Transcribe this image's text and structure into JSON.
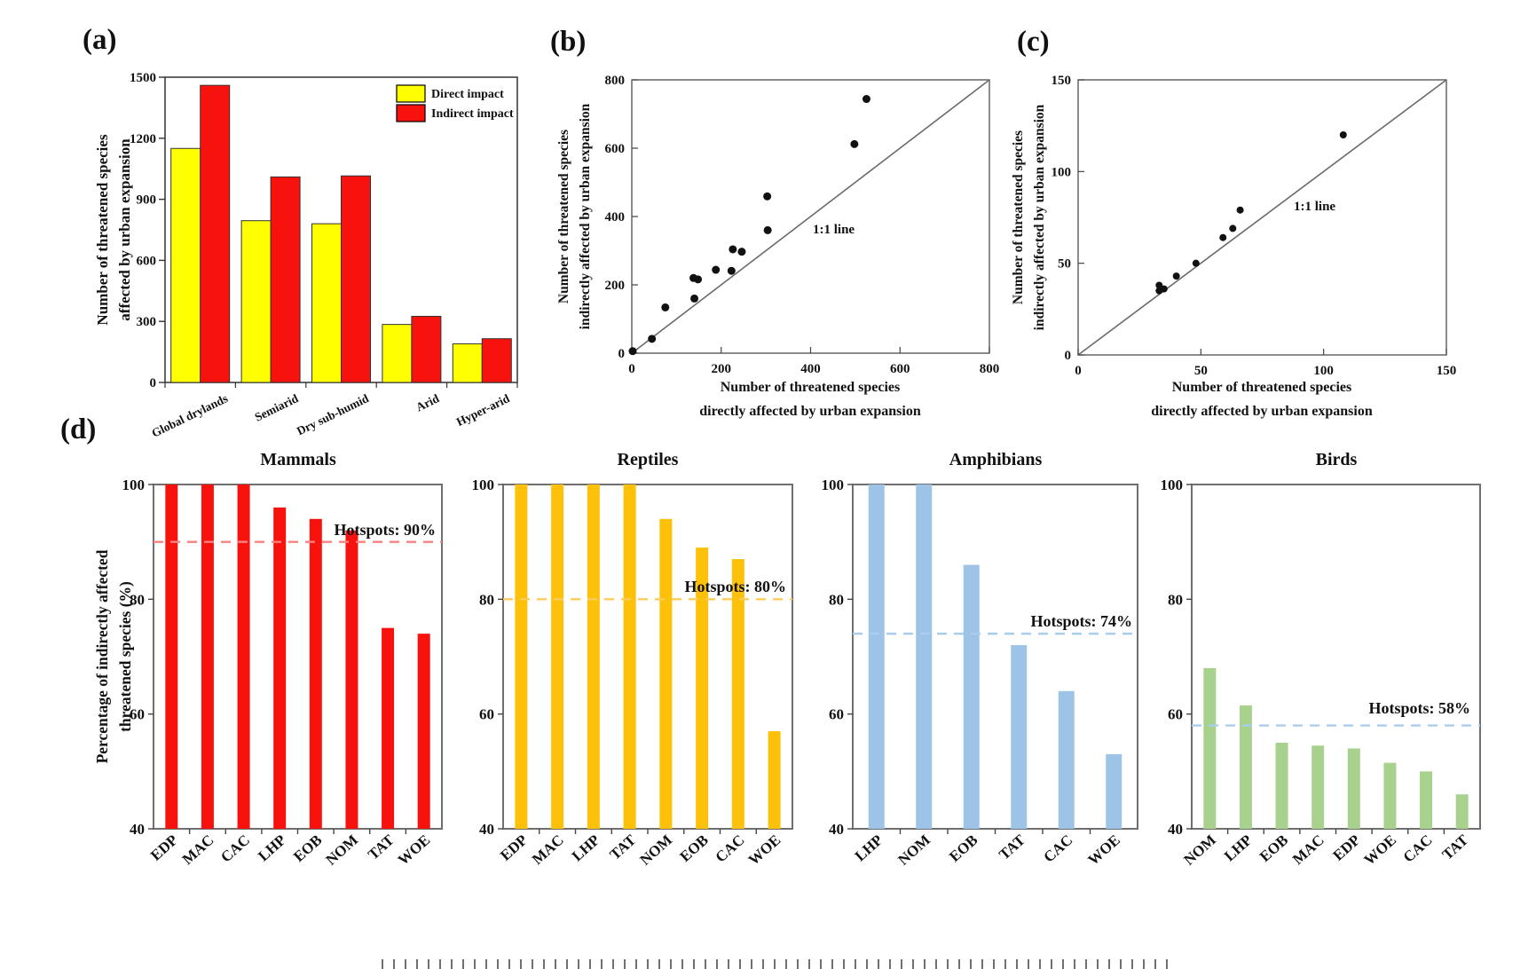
{
  "canvas": {
    "background": "#ffffff"
  },
  "chart_data": [
    {
      "id": "a",
      "panel_label": "(a)",
      "type": "bar",
      "categories": [
        "Global drylands",
        "Semiarid",
        "Dry sub-humid",
        "Arid",
        "Hyper-arid"
      ],
      "series": [
        {
          "name": "Direct impact",
          "color": "#ffff00",
          "values": [
            1150,
            795,
            780,
            285,
            190
          ]
        },
        {
          "name": "Indirect impact",
          "color": "#f8120e",
          "values": [
            1460,
            1010,
            1015,
            325,
            215
          ]
        }
      ],
      "ylabel_lines": [
        "Number of threatened species",
        "affected by urban expansion"
      ],
      "ylim": [
        0,
        1500
      ],
      "yticks": [
        0,
        300,
        600,
        900,
        1200,
        1500
      ],
      "legend_position": "top-right",
      "grid": false
    },
    {
      "id": "b",
      "panel_label": "(b)",
      "type": "scatter",
      "points": [
        [
          2,
          6
        ],
        [
          45,
          42
        ],
        [
          75,
          134
        ],
        [
          140,
          160
        ],
        [
          138,
          220
        ],
        [
          148,
          216
        ],
        [
          188,
          244
        ],
        [
          223,
          241
        ],
        [
          226,
          304
        ],
        [
          246,
          297
        ],
        [
          304,
          360
        ],
        [
          303,
          459
        ],
        [
          498,
          612
        ],
        [
          525,
          744
        ]
      ],
      "xlabel_lines": [
        "Number of threatened species",
        "directly affected by urban expansion"
      ],
      "ylabel_lines": [
        "Number of threatened species",
        "indirectly affected by urban expansion"
      ],
      "xlim": [
        0,
        800
      ],
      "ylim": [
        0,
        800
      ],
      "xticks": [
        0,
        200,
        400,
        600,
        800
      ],
      "yticks": [
        0,
        200,
        400,
        600,
        800
      ],
      "reference_line": {
        "label": "1:1 line",
        "from": [
          0,
          0
        ],
        "to": [
          800,
          800
        ]
      },
      "marker_color": "#111111",
      "grid": false
    },
    {
      "id": "c",
      "panel_label": "(c)",
      "type": "scatter",
      "points": [
        [
          33,
          35
        ],
        [
          33,
          38
        ],
        [
          35,
          36
        ],
        [
          40,
          43
        ],
        [
          48,
          50
        ],
        [
          59,
          64
        ],
        [
          63,
          69
        ],
        [
          66,
          79
        ],
        [
          108,
          120
        ]
      ],
      "xlabel_lines": [
        "Number of threatened species",
        "directly affected by urban expansion"
      ],
      "ylabel_lines": [
        "Number of threatened species",
        "indirectly affected by urban expansion"
      ],
      "xlim": [
        0,
        150
      ],
      "ylim": [
        0,
        150
      ],
      "xticks": [
        0,
        50,
        100,
        150
      ],
      "yticks": [
        0,
        50,
        100,
        150
      ],
      "reference_line": {
        "label": "1:1 line",
        "from": [
          0,
          0
        ],
        "to": [
          150,
          150
        ]
      },
      "marker_color": "#111111",
      "grid": false
    },
    {
      "id": "d",
      "panel_label": "(d)",
      "type": "bar_group",
      "ylabel_lines": [
        "Percentage of indirectly affected",
        "threatened species (%)"
      ],
      "ylim": [
        40,
        100
      ],
      "yticks": [
        100,
        80,
        60,
        40
      ],
      "subpanels": [
        {
          "title": "Mammals",
          "bar_color": "#f8120e",
          "line_color": "#f9817e",
          "hotspot_label": "Hotspots: 90%",
          "hotspot_value": 90,
          "categories": [
            "EDP",
            "MAC",
            "CAC",
            "LHP",
            "EOB",
            "NOM",
            "TAT",
            "WOE"
          ],
          "values": [
            100,
            100,
            100,
            96,
            94,
            92,
            75,
            74
          ]
        },
        {
          "title": "Reptiles",
          "bar_color": "#fdc10a",
          "line_color": "#fbcb5b",
          "hotspot_label": "Hotspots: 80%",
          "hotspot_value": 80,
          "categories": [
            "EDP",
            "MAC",
            "LHP",
            "TAT",
            "NOM",
            "EOB",
            "CAC",
            "WOE"
          ],
          "values": [
            100,
            100,
            100,
            100,
            94,
            89,
            87,
            57
          ]
        },
        {
          "title": "Amphibians",
          "bar_color": "#9dc3e6",
          "line_color": "#a9cdef",
          "hotspot_label": "Hotspots: 74%",
          "hotspot_value": 74,
          "categories": [
            "LHP",
            "NOM",
            "EOB",
            "TAT",
            "CAC",
            "WOE"
          ],
          "values": [
            100,
            100,
            86,
            72,
            64,
            53
          ]
        },
        {
          "title": "Birds",
          "bar_color": "#a9d18e",
          "line_color": "#a9cdef",
          "hotspot_label": "Hotspots: 58%",
          "hotspot_value": 58,
          "categories": [
            "NOM",
            "LHP",
            "EOB",
            "MAC",
            "EDP",
            "WOE",
            "CAC",
            "TAT"
          ],
          "values": [
            68,
            61.5,
            55,
            54.5,
            54,
            51.5,
            50,
            46
          ]
        }
      ]
    }
  ]
}
